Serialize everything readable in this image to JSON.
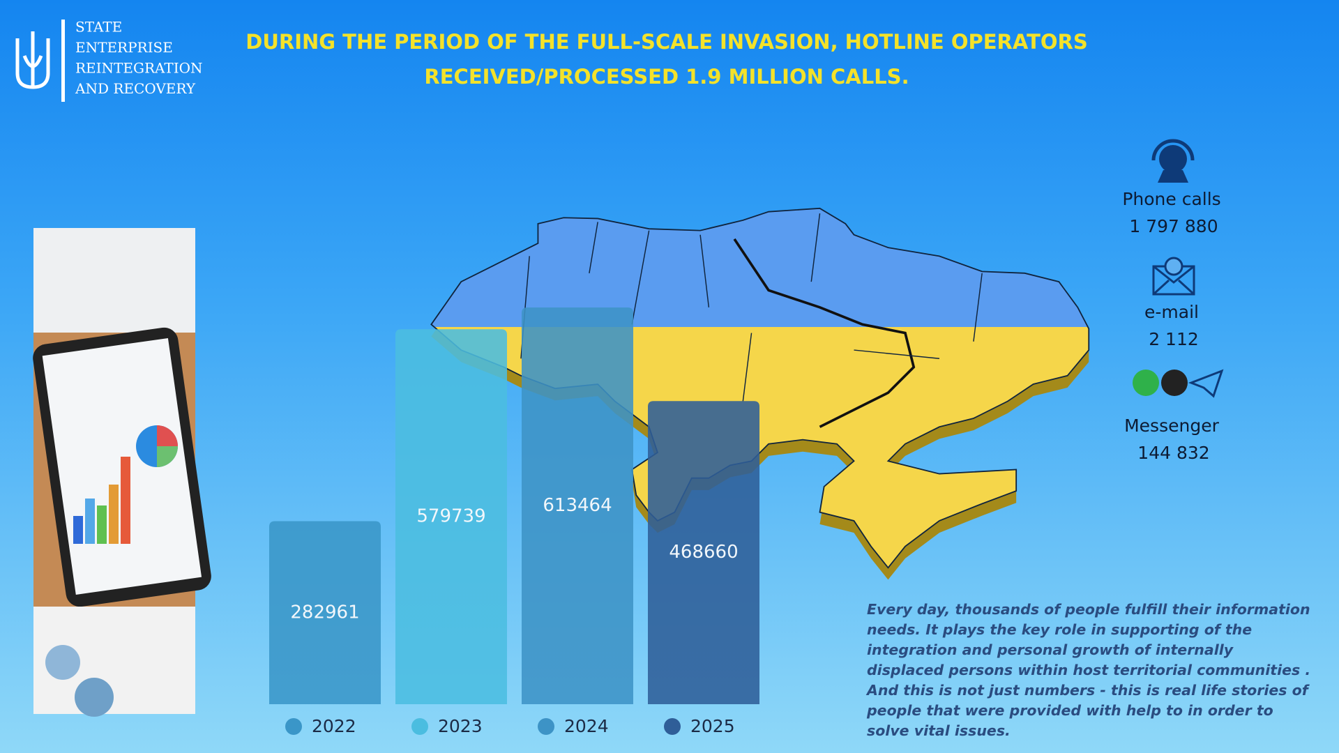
{
  "header": {
    "org_lines": [
      "STATE",
      "ENTERPRISE",
      "REINTEGRATION",
      "AND RECOVERY"
    ],
    "title_lines": [
      "DURING THE PERIOD OF THE FULL-SCALE INVASION, HOTLINE OPERATORS",
      "RECEIVED/PROCESSED 1.9 MILLION CALLS."
    ]
  },
  "chart_data": {
    "type": "bar",
    "categories": [
      "2022",
      "2023",
      "2024",
      "2025"
    ],
    "values": [
      282961,
      579739,
      613464,
      468660
    ],
    "colors": [
      "#3a96c8",
      "#4bbde0",
      "#3d93c6",
      "#2f5e98"
    ]
  },
  "stats": [
    {
      "label": "Phone calls",
      "value": "1 797 880"
    },
    {
      "label": "e-mail",
      "value": "2 112"
    },
    {
      "label": "Messenger",
      "value": "144 832"
    }
  ],
  "note": "Every day, thousands of people  fulfill   their information needs. It plays the key role in supporting of the integration and  personal growth of internally displaced persons within host territorial communities . And this is not just numbers  - this is real life stories of people that were provided with help to in order to solve vital issues."
}
